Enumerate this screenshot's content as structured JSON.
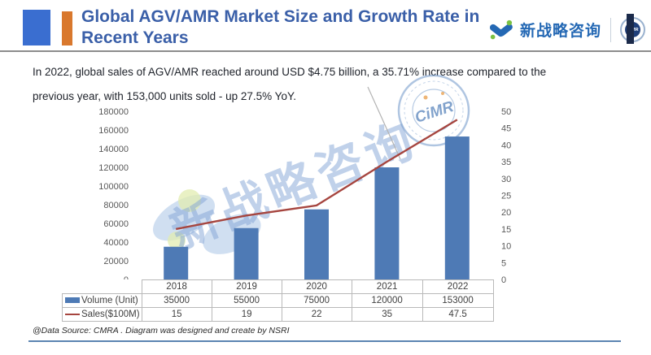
{
  "header": {
    "title_line1": "Global AGV/AMR Market Size and Growth Rate in",
    "title_line2": "Recent Years",
    "brand_text": "新战略咨询",
    "badge_text": "CiMR"
  },
  "summary": {
    "line1": "In 2022, global sales of AGV/AMR reached around USD $4.75 billion, a 35.71% increase compared to the",
    "line2": "previous year, with 153,000 units sold - up 27.5% YoY."
  },
  "chart_data": {
    "type": "bar+line combo",
    "categories": [
      "2018",
      "2019",
      "2020",
      "2021",
      "2022"
    ],
    "series": [
      {
        "name": "Volume (Unit)",
        "type": "bar",
        "axis": "left",
        "values": [
          35000,
          55000,
          75000,
          120000,
          153000
        ]
      },
      {
        "name": "Sales($100M)",
        "type": "line",
        "axis": "right",
        "values": [
          15,
          19,
          22,
          35,
          47.5
        ]
      }
    ],
    "left_axis": {
      "min": 0,
      "max": 180000,
      "step": 20000
    },
    "right_axis": {
      "min": 0,
      "max": 50,
      "step": 5
    },
    "grid": false,
    "legend_position": "table rows left of data table",
    "title": ""
  },
  "watermark": {
    "text": "新战略咨询",
    "stamp_text": "CiMR"
  },
  "footer": {
    "source_note": "@Data Source:  CMRA . Diagram was designed and create by NSRI"
  },
  "colors": {
    "accent_blue": "#3a6ed0",
    "accent_orange": "#d9782d",
    "title_blue": "#3a5fa8",
    "brand_blue": "#2468b4",
    "brand_green": "#7ac143",
    "bar_blue": "#4e7ab5",
    "line_red": "#a6453f",
    "footer_line_blue": "#5b84b1",
    "axis_text_gray": "#595959"
  }
}
